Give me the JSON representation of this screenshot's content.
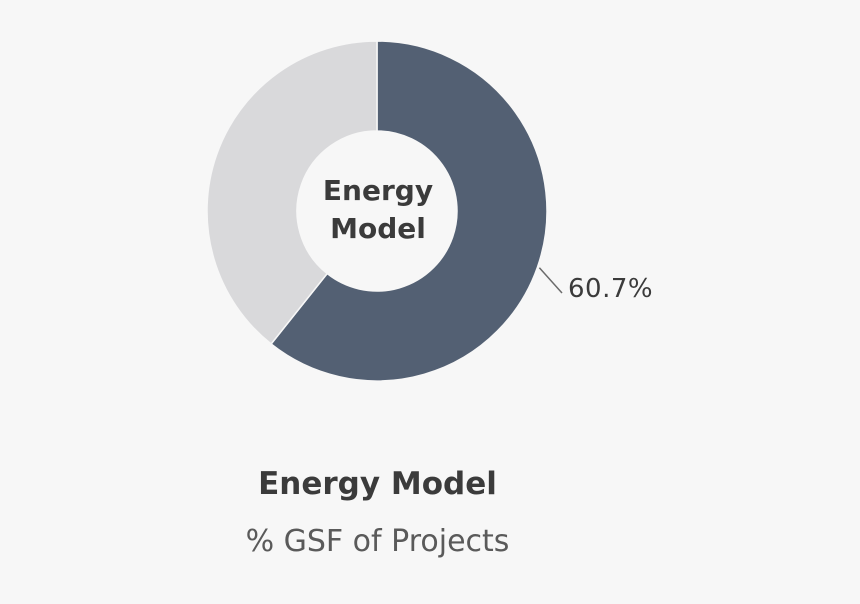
{
  "chart_data": {
    "type": "pie",
    "title": "Energy Model",
    "subtitle": "% GSF of Projects",
    "center_label": [
      "Energy",
      "Model"
    ],
    "slices": [
      {
        "value": 60.7,
        "label": "60.7%",
        "color": "#536073"
      },
      {
        "value": 39.3,
        "label": "",
        "color": "#d9d9db"
      }
    ],
    "background": "#f7f7f7"
  }
}
